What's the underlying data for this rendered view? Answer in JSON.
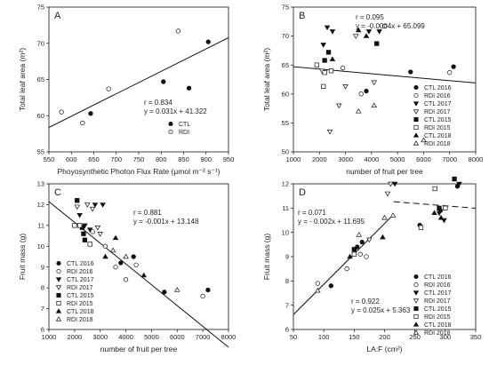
{
  "markers": {
    "CTL 2016": "circle-filled",
    "RDI 2016": "circle-open",
    "CTL 2017": "tri-down-filled",
    "RDI 2017": "tri-down-open",
    "CTL 2015": "square-filled",
    "RDI 2015": "square-open",
    "CTL 2018": "tri-up-filled",
    "RDI 2018": "tri-up-open",
    "CTL": "circle-filled",
    "RDI": "circle-open"
  },
  "chart_data": [
    {
      "id": "A",
      "type": "scatter",
      "letter": "A",
      "xlabel": "Phoyosynthetic Photon Flux Rate (μmol m⁻² s⁻¹)",
      "ylabel": "Total leaf area (m²)",
      "xlim": [
        550,
        950
      ],
      "ylim": [
        55,
        75
      ],
      "xticks": [
        550,
        600,
        650,
        700,
        750,
        800,
        850,
        900,
        950
      ],
      "yticks": [
        55,
        60,
        65,
        70,
        75
      ],
      "annotation": [
        "r = 0.834",
        "y = 0.031x + 41.322"
      ],
      "legend": [
        "CTL",
        "RDI"
      ],
      "series": [
        {
          "name": "CTL",
          "points": [
            [
              643,
              60.3
            ],
            [
              805,
              64.7
            ],
            [
              862,
              63.8
            ],
            [
              905,
              70.2
            ]
          ]
        },
        {
          "name": "RDI",
          "points": [
            [
              578,
              60.5
            ],
            [
              625,
              59.0
            ],
            [
              683,
              63.7
            ],
            [
              838,
              71.7
            ]
          ]
        }
      ],
      "fits": [
        {
          "x": [
            550,
            950
          ],
          "intercept": 41.322,
          "slope": 0.031,
          "dash": false
        }
      ]
    },
    {
      "id": "B",
      "type": "scatter",
      "letter": "B",
      "xlabel": "number of fruit per tree",
      "ylabel": "Total leaf area (m²)",
      "xlim": [
        1000,
        8000
      ],
      "ylim": [
        50,
        75
      ],
      "xticks": [
        1000,
        2000,
        3000,
        4000,
        5000,
        6000,
        7000,
        8000
      ],
      "yticks": [
        50,
        55,
        60,
        65,
        70,
        75
      ],
      "annotation": [
        "r = 0.095",
        "y = -0.0004x + 65.099"
      ],
      "legend": [
        "CTL 2016",
        "RDI 2016",
        "CTL 2017",
        "RDI 2017",
        "CTL 2015",
        "RDI 2015",
        "CTL 2018",
        "RDI 2018"
      ],
      "series": [
        {
          "name": "CTL 2016",
          "points": [
            [
              3800,
              60.5
            ],
            [
              5500,
              63.8
            ],
            [
              7150,
              64.7
            ]
          ]
        },
        {
          "name": "RDI 2016",
          "points": [
            [
              2900,
              64.5
            ],
            [
              3600,
              60.0
            ],
            [
              4500,
              71.7
            ],
            [
              7000,
              63.7
            ]
          ]
        },
        {
          "name": "CTL 2017",
          "points": [
            [
              2150,
              68.5
            ],
            [
              2300,
              71.5
            ],
            [
              2500,
              70.8
            ],
            [
              3900,
              70.8
            ],
            [
              4300,
              70.8
            ]
          ]
        },
        {
          "name": "RDI 2017",
          "points": [
            [
              2100,
              64.0
            ],
            [
              2400,
              53.5
            ],
            [
              2750,
              58.0
            ],
            [
              3000,
              61.3
            ],
            [
              3400,
              70.0
            ],
            [
              4100,
              62.0
            ]
          ]
        },
        {
          "name": "CTL 2015",
          "points": [
            [
              2200,
              65.8
            ],
            [
              2350,
              67.2
            ],
            [
              4200,
              68.7
            ]
          ]
        },
        {
          "name": "RDI 2015",
          "points": [
            [
              1900,
              65.0
            ],
            [
              2150,
              61.3
            ],
            [
              2200,
              63.7
            ],
            [
              2450,
              64.0
            ]
          ]
        },
        {
          "name": "CTL 2018",
          "points": [
            [
              2500,
              66.0
            ],
            [
              3500,
              71.0
            ],
            [
              3800,
              70.0
            ]
          ]
        },
        {
          "name": "RDI 2018",
          "points": [
            [
              3500,
              57.0
            ],
            [
              4100,
              58.0
            ],
            [
              6000,
              52.0
            ]
          ]
        }
      ],
      "fits": [
        {
          "x": [
            1000,
            8000
          ],
          "intercept": 65.099,
          "slope": -0.0004,
          "dash": false
        }
      ]
    },
    {
      "id": "C",
      "type": "scatter",
      "letter": "C",
      "xlabel": "number of fruit per tree",
      "ylabel": "Fruit mass (g)",
      "xlim": [
        1000,
        8000
      ],
      "ylim": [
        6,
        13
      ],
      "xticks": [
        1000,
        2000,
        3000,
        4000,
        5000,
        6000,
        7000,
        8000
      ],
      "yticks": [
        6,
        7,
        8,
        9,
        10,
        11,
        12,
        13
      ],
      "annotation": [
        "r = 0.881",
        "y = -0.001x + 13.148"
      ],
      "legend": [
        "CTL 2016",
        "RDI 2016",
        "CTL 2017",
        "RDI 2017",
        "CTL 2015",
        "RDI 2015",
        "CTL 2018",
        "RDI 2018"
      ],
      "series": [
        {
          "name": "CTL 2016",
          "points": [
            [
              3800,
              9.2
            ],
            [
              4300,
              9.5
            ],
            [
              5500,
              7.8
            ],
            [
              7200,
              7.9
            ]
          ]
        },
        {
          "name": "RDI 2016",
          "points": [
            [
              2700,
              10.7
            ],
            [
              3200,
              10.0
            ],
            [
              3600,
              9.0
            ],
            [
              4000,
              8.4
            ],
            [
              4400,
              9.1
            ],
            [
              7000,
              7.6
            ]
          ]
        },
        {
          "name": "CTL 2017",
          "points": [
            [
              2200,
              11.5
            ],
            [
              2400,
              11.0
            ],
            [
              2600,
              10.8
            ],
            [
              2800,
              12.0
            ],
            [
              3100,
              12.0
            ]
          ]
        },
        {
          "name": "RDI 2017",
          "points": [
            [
              2100,
              11.9
            ],
            [
              2500,
              12.0
            ],
            [
              2700,
              11.8
            ],
            [
              2900,
              10.9
            ],
            [
              3000,
              10.6
            ]
          ]
        },
        {
          "name": "CTL 2015",
          "points": [
            [
              2100,
              12.2
            ],
            [
              2300,
              10.9
            ],
            [
              2350,
              10.6
            ],
            [
              2400,
              10.3
            ]
          ]
        },
        {
          "name": "RDI 2015",
          "points": [
            [
              2000,
              11.0
            ],
            [
              2200,
              11.0
            ],
            [
              2600,
              10.1
            ]
          ]
        },
        {
          "name": "CTL 2018",
          "points": [
            [
              3200,
              9.5
            ],
            [
              3600,
              10.4
            ],
            [
              4700,
              8.6
            ]
          ]
        },
        {
          "name": "RDI 2018",
          "points": [
            [
              3500,
              9.8
            ],
            [
              4000,
              9.5
            ],
            [
              6000,
              7.9
            ]
          ]
        }
      ],
      "fits": [
        {
          "x": [
            1000,
            8000
          ],
          "intercept": 13.148,
          "slope": -0.001,
          "dash": false
        }
      ]
    },
    {
      "id": "D",
      "type": "scatter",
      "letter": "D",
      "xlabel": "LA:F (cm²)",
      "ylabel": "Fruit mass (g)",
      "xlim": [
        50,
        350
      ],
      "ylim": [
        6,
        12
      ],
      "xticks": [
        50,
        100,
        150,
        200,
        250,
        300,
        350
      ],
      "yticks": [
        6,
        7,
        8,
        9,
        10,
        11,
        12
      ],
      "annotation_top": [
        "r = 0.071",
        "y = - 0.002x + 11.695"
      ],
      "annotation_bottom": [
        "r = 0.922",
        "y = 0.025x + 5.363"
      ],
      "legend": [
        "CTL 2016",
        "RDI 2016",
        "CTL 2017",
        "RDI 2017",
        "CTL 2015",
        "RDI 2015",
        "CTL 2018",
        "RDI 2018"
      ],
      "series": [
        {
          "name": "CTL 2016",
          "points": [
            [
              112,
              7.8
            ],
            [
              155,
              9.4
            ],
            [
              163,
              9.6
            ],
            [
              258,
              10.3
            ],
            [
              292,
              10.9
            ],
            [
              320,
              11.9
            ]
          ]
        },
        {
          "name": "RDI 2016",
          "points": [
            [
              90,
              7.9
            ],
            [
              138,
              8.5
            ],
            [
              160,
              9.1
            ],
            [
              170,
              9.0
            ]
          ]
        },
        {
          "name": "CTL 2017",
          "points": [
            [
              217,
              12.0
            ],
            [
              290,
              10.8
            ],
            [
              298,
              10.5
            ],
            [
              323,
              12.0
            ]
          ]
        },
        {
          "name": "RDI 2017",
          "points": [
            [
              175,
              9.7
            ],
            [
              205,
              11.6
            ],
            [
              210,
              12.0
            ]
          ]
        },
        {
          "name": "CTL 2015",
          "points": [
            [
              150,
              9.3
            ],
            [
              290,
              11.0
            ],
            [
              315,
              12.2
            ]
          ]
        },
        {
          "name": "RDI 2015",
          "points": [
            [
              150,
              9.1
            ],
            [
              260,
              10.2
            ],
            [
              283,
              11.8
            ],
            [
              300,
              11.0
            ]
          ]
        },
        {
          "name": "CTL 2018",
          "points": [
            [
              143,
              9.0
            ],
            [
              197,
              9.8
            ],
            [
              282,
              10.8
            ],
            [
              293,
              10.6
            ]
          ]
        },
        {
          "name": "RDI 2018",
          "points": [
            [
              90,
              7.6
            ],
            [
              158,
              9.9
            ],
            [
              200,
              10.6
            ],
            [
              214,
              10.7
            ]
          ]
        }
      ],
      "fits": [
        {
          "x": [
            50,
            210
          ],
          "intercept": 5.363,
          "slope": 0.025,
          "dash": false
        },
        {
          "x": [
            215,
            350
          ],
          "intercept": 11.695,
          "slope": -0.002,
          "dash": true
        }
      ]
    }
  ]
}
